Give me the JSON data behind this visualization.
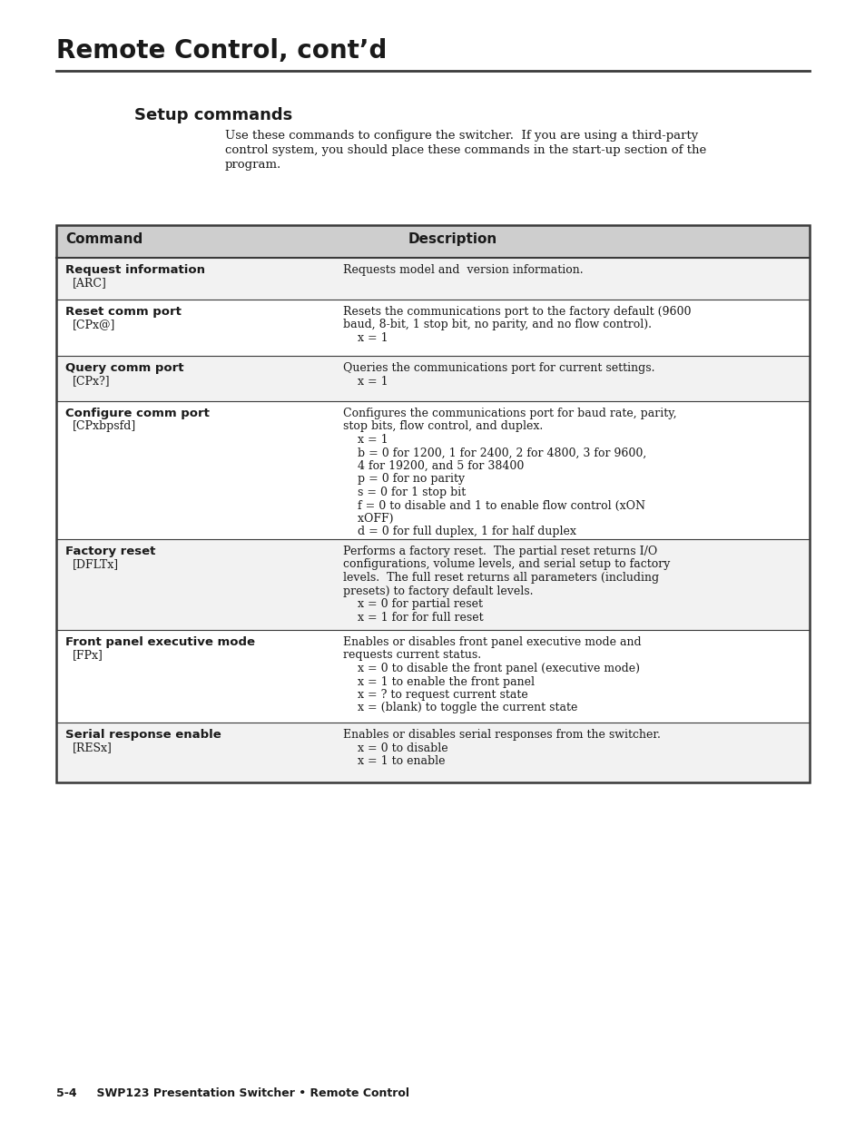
{
  "page_title": "Remote Control, cont’d",
  "section_title": "Setup commands",
  "intro_text": "Use these commands to configure the switcher.  If you are using a third-party\ncontrol system, you should place these commands in the start-up section of the\nprogram.",
  "footer_text": "5-4     SWP123 Presentation Switcher • Remote Control",
  "table_header": [
    "Command",
    "Description"
  ],
  "header_bg": "#cecece",
  "row_bg_odd": "#f2f2f2",
  "row_bg_even": "#ffffff",
  "border_color": "#3a3a3a",
  "text_color": "#1a1a1a",
  "rows": [
    {
      "section": "Request information",
      "command": "[ARC]",
      "desc_lines": [
        {
          "text": "Requests model and  version information.",
          "bold_prefix": ""
        }
      ]
    },
    {
      "section": "Reset comm port",
      "command": "[CPx@]",
      "desc_lines": [
        {
          "text": "Resets the communications port to the factory default (9600",
          "bold_prefix": ""
        },
        {
          "text": "baud, 8-bit, 1 stop bit, no parity, and no flow control).",
          "bold_prefix": ""
        },
        {
          "text": "    x = 1",
          "bold_prefix": "x"
        }
      ]
    },
    {
      "section": "Query comm port",
      "command": "[CPx?]",
      "desc_lines": [
        {
          "text": "Queries the communications port for current settings.",
          "bold_prefix": ""
        },
        {
          "text": "    x = 1",
          "bold_prefix": "x"
        }
      ]
    },
    {
      "section": "Configure comm port",
      "command": "[CPxbpsfd]",
      "desc_lines": [
        {
          "text": "Configures the communications port for baud rate, parity,",
          "bold_prefix": ""
        },
        {
          "text": "stop bits, flow control, and duplex.",
          "bold_prefix": ""
        },
        {
          "text": "    x = 1",
          "bold_prefix": "x"
        },
        {
          "text": "    b = 0 for 1200, 1 for 2400, 2 for 4800, 3 for 9600,",
          "bold_prefix": "b"
        },
        {
          "text": "    4 for 19200, and 5 for 38400",
          "bold_prefix": ""
        },
        {
          "text": "    p = 0 for no parity",
          "bold_prefix": "p"
        },
        {
          "text": "    s = 0 for 1 stop bit",
          "bold_prefix": "s"
        },
        {
          "text": "    f = 0 to disable and 1 to enable flow control (xON",
          "bold_prefix": "f"
        },
        {
          "text": "    xOFF)",
          "bold_prefix": ""
        },
        {
          "text": "    d = 0 for full duplex, 1 for half duplex",
          "bold_prefix": "d"
        }
      ]
    },
    {
      "section": "Factory reset",
      "command": "[DFLTx]",
      "desc_lines": [
        {
          "text": "Performs a factory reset.  The partial reset returns I/O",
          "bold_prefix": ""
        },
        {
          "text": "configurations, volume levels, and serial setup to factory",
          "bold_prefix": ""
        },
        {
          "text": "levels.  The full reset returns all parameters (including",
          "bold_prefix": ""
        },
        {
          "text": "presets) to factory default levels.",
          "bold_prefix": ""
        },
        {
          "text": "    x = 0 for partial reset",
          "bold_prefix": "x"
        },
        {
          "text": "    x = 1 for for full reset",
          "bold_prefix": "x"
        }
      ]
    },
    {
      "section": "Front panel executive mode",
      "command": "[FPx]",
      "desc_lines": [
        {
          "text": "Enables or disables front panel executive mode and",
          "bold_prefix": ""
        },
        {
          "text": "requests current status.",
          "bold_prefix": ""
        },
        {
          "text": "    x = 0 to disable the front panel (executive mode)",
          "bold_prefix": "x"
        },
        {
          "text": "    x = 1 to enable the front panel",
          "bold_prefix": "x"
        },
        {
          "text": "    x = ? to request current state",
          "bold_prefix": "x"
        },
        {
          "text": "    x = (blank) to toggle the current state",
          "bold_prefix": "x"
        }
      ]
    },
    {
      "section": "Serial response enable",
      "command": "[RESx]",
      "desc_lines": [
        {
          "text": "Enables or disables serial responses from the switcher.",
          "bold_prefix": ""
        },
        {
          "text": "    x = 0 to disable",
          "bold_prefix": "x"
        },
        {
          "text": "    x = 1 to enable",
          "bold_prefix": "x"
        }
      ]
    }
  ]
}
